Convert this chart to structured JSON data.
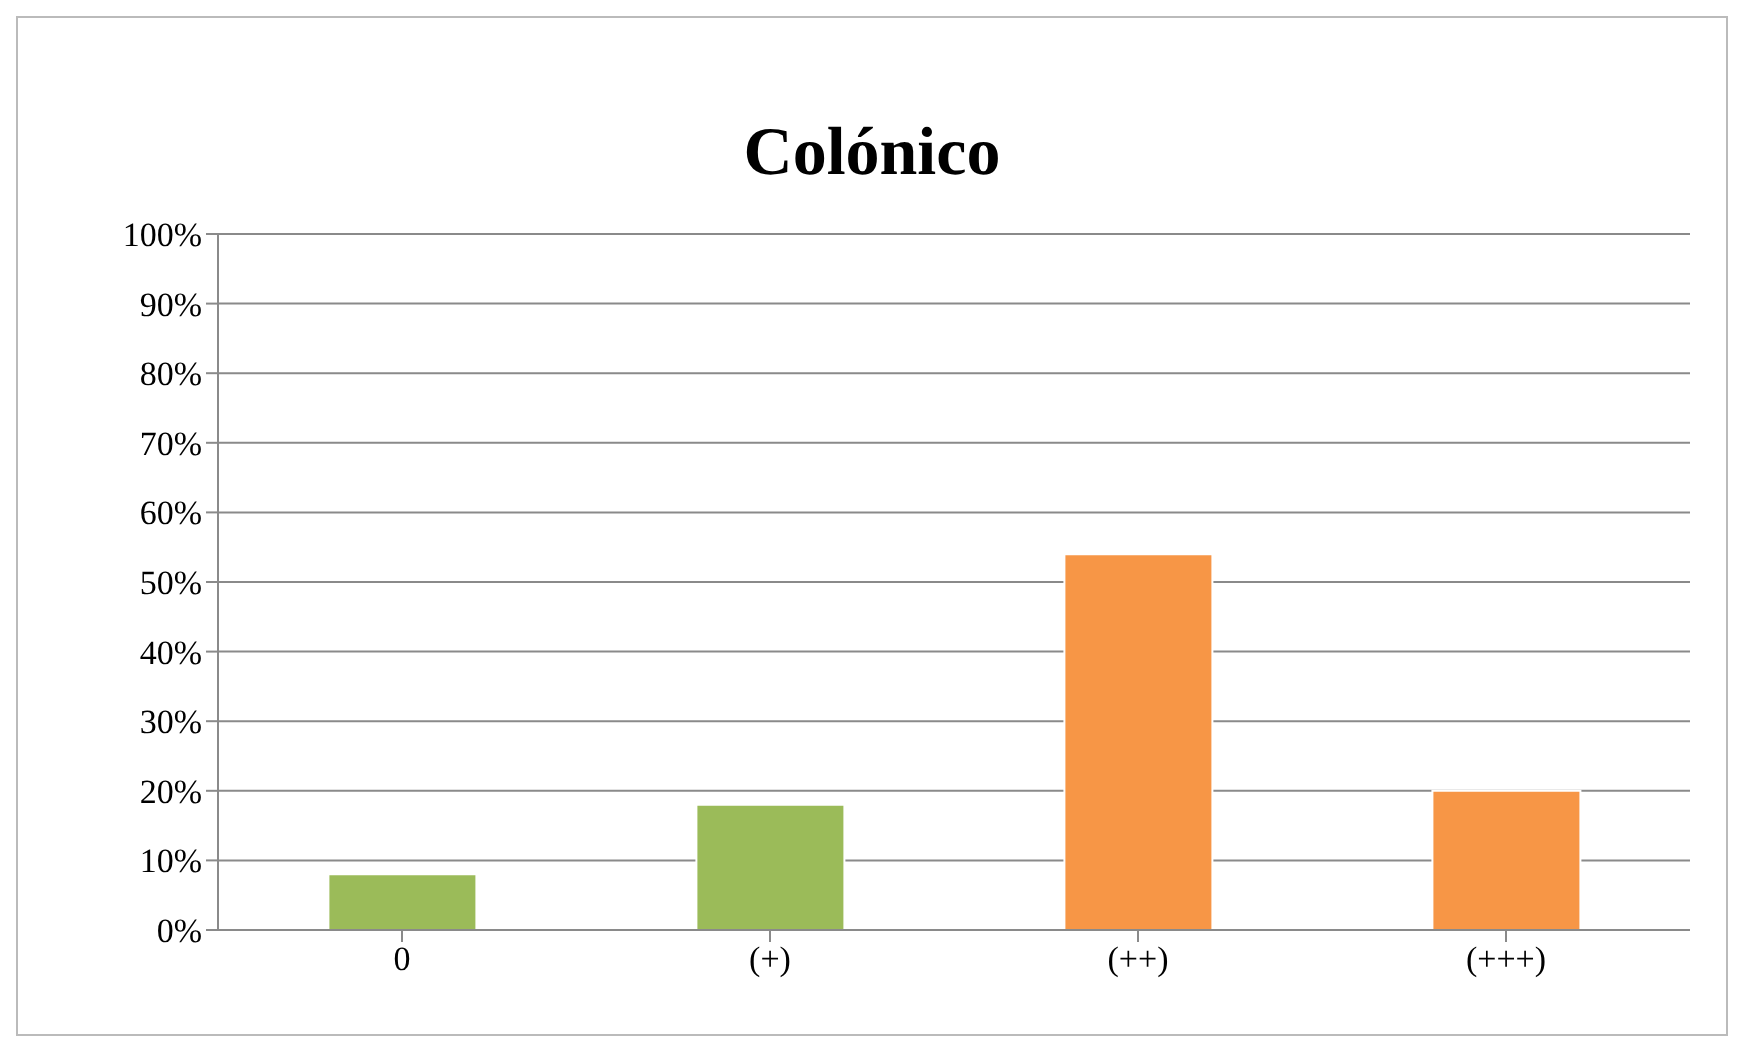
{
  "chart_data": {
    "type": "bar",
    "title": "Colónico",
    "categories": [
      "0",
      "(+)",
      "(++)",
      "(+++)"
    ],
    "values": [
      8,
      18,
      54,
      20
    ],
    "colors": [
      "#9bbb59",
      "#9bbb59",
      "#f79646",
      "#f79646"
    ],
    "ylim": [
      0,
      100
    ],
    "yticks": [
      {
        "value": 0,
        "label": "0%"
      },
      {
        "value": 10,
        "label": "10%"
      },
      {
        "value": 20,
        "label": "20%"
      },
      {
        "value": 30,
        "label": "30%"
      },
      {
        "value": 40,
        "label": "40%"
      },
      {
        "value": 50,
        "label": "50%"
      },
      {
        "value": 60,
        "label": "60%"
      },
      {
        "value": 70,
        "label": "70%"
      },
      {
        "value": 80,
        "label": "80%"
      },
      {
        "value": 90,
        "label": "90%"
      },
      {
        "value": 100,
        "label": "100%"
      }
    ],
    "grid": "y",
    "legend": false
  }
}
